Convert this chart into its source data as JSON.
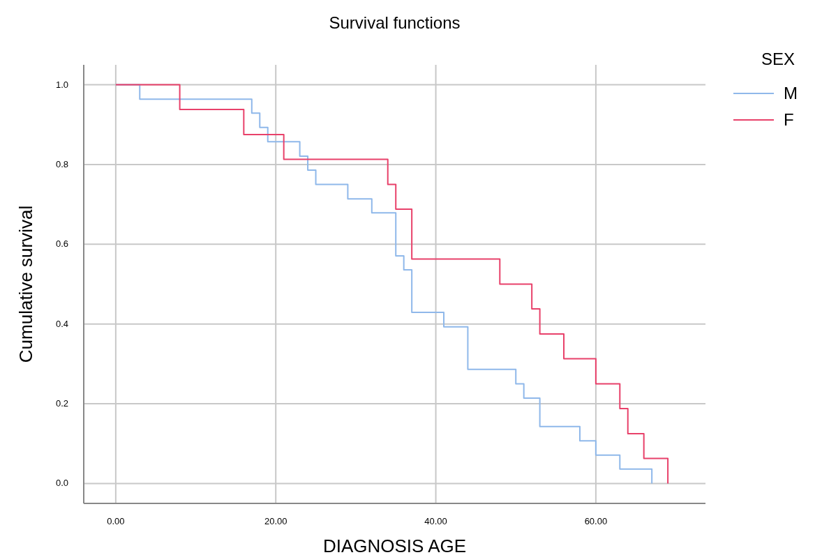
{
  "chart_data": {
    "type": "step",
    "title": "Survival functions",
    "xlabel": "DIAGNOSIS AGE",
    "ylabel": "Cumulative survival",
    "legend_title": "SEX",
    "legend": "top right",
    "grid": true,
    "xlim": [
      -4,
      73.7
    ],
    "ylim": [
      -0.05,
      1.05
    ],
    "xticks": [
      {
        "value": 0,
        "label": "0.00"
      },
      {
        "value": 20,
        "label": "20.00"
      },
      {
        "value": 40,
        "label": "40.00"
      },
      {
        "value": 60,
        "label": "60.00"
      }
    ],
    "yticks": [
      {
        "value": 0,
        "label": "0.0"
      },
      {
        "value": 0.2,
        "label": "0.2"
      },
      {
        "value": 0.4,
        "label": "0.4"
      },
      {
        "value": 0.6,
        "label": "0.6"
      },
      {
        "value": 0.8,
        "label": "0.8"
      },
      {
        "value": 1,
        "label": "1.0"
      }
    ],
    "series": [
      {
        "name": "M",
        "color": "#8fb8ea",
        "x": [
          0,
          3,
          17,
          18,
          19,
          23,
          24,
          25,
          29,
          32,
          35,
          36,
          37,
          41,
          44,
          50,
          51,
          53,
          58,
          60,
          63,
          67
        ],
        "values": [
          1,
          0.964,
          0.929,
          0.893,
          0.857,
          0.821,
          0.786,
          0.75,
          0.714,
          0.679,
          0.571,
          0.536,
          0.429,
          0.393,
          0.286,
          0.25,
          0.214,
          0.143,
          0.107,
          0.071,
          0.036,
          0
        ]
      },
      {
        "name": "F",
        "color": "#e8416a",
        "x": [
          0,
          8,
          16,
          21,
          34,
          35,
          37,
          48,
          52,
          53,
          56,
          60,
          63,
          64,
          66,
          69
        ],
        "values": [
          1,
          0.938,
          0.875,
          0.813,
          0.75,
          0.688,
          0.563,
          0.5,
          0.438,
          0.375,
          0.313,
          0.25,
          0.188,
          0.125,
          0.063,
          0
        ]
      }
    ]
  }
}
